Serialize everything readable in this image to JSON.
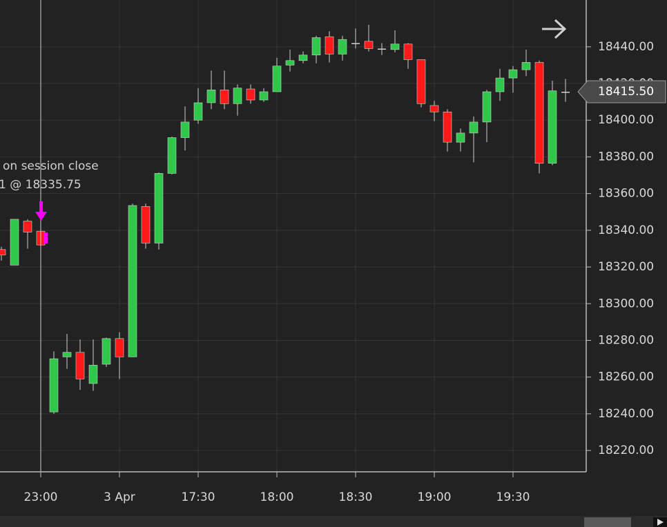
{
  "chart_data": {
    "type": "candlestick",
    "categories": [
      null,
      null,
      null,
      "23:00",
      null,
      null,
      null,
      null,
      null,
      "3 Apr",
      null,
      null,
      null,
      null,
      null,
      "17:30",
      null,
      null,
      null,
      null,
      null,
      "18:00",
      null,
      null,
      null,
      null,
      null,
      "18:30",
      null,
      null,
      null,
      null,
      null,
      "19:00",
      null,
      null,
      null,
      null,
      null,
      "19:30",
      null,
      null,
      null,
      null
    ],
    "open": [
      18329.5,
      18321,
      18345,
      18339.5,
      18241,
      18271,
      18273.5,
      18256.5,
      18267,
      18281,
      18271,
      18353,
      18333,
      18371,
      18390.5,
      18400,
      18409.5,
      18416.5,
      18409,
      18417,
      18411,
      18415.5,
      18430,
      18432.5,
      18435.5,
      18445.5,
      18436,
      18442,
      18443,
      18439,
      18438.5,
      18441.5,
      18433,
      18408,
      18404.5,
      18388,
      18393,
      18399,
      18415.5,
      18423,
      18427.5,
      18431.5,
      18376.5,
      18415.5
    ],
    "high": [
      18331,
      18346,
      18346,
      18341.5,
      18274,
      18283.5,
      18280.5,
      18280.5,
      18281.5,
      18284.5,
      18354.5,
      18354.5,
      18371.5,
      18391,
      18407.5,
      18417.5,
      18427,
      18427,
      18419.5,
      18419.5,
      18417.5,
      18434,
      18438.5,
      18437.5,
      18446,
      18448.5,
      18446,
      18450,
      18452,
      18442,
      18449,
      18442,
      18433,
      18410.5,
      18406,
      18395.5,
      18402,
      18416.5,
      18428,
      18429.5,
      18438.5,
      18432.5,
      18421.5,
      18422.5
    ],
    "low": [
      18323.5,
      18321,
      18330,
      18331,
      18240,
      18264.5,
      18253,
      18252.5,
      18265.5,
      18259,
      18271,
      18330,
      18329.5,
      18370.5,
      18383.5,
      18398,
      18406,
      18406,
      18402.5,
      18409,
      18410,
      18415.5,
      18426.5,
      18431,
      18431,
      18431.5,
      18432.5,
      18439,
      18437.5,
      18435.5,
      18437,
      18428,
      18407,
      18399.5,
      18383,
      18383,
      18377,
      18388,
      18410.5,
      18415,
      18424,
      18371,
      18375.5,
      18410
    ],
    "close": [
      18326.5,
      18346,
      18339,
      18332,
      18270,
      18273.5,
      18259,
      18266.5,
      18281,
      18271,
      18353.5,
      18333,
      18371,
      18390.5,
      18399,
      18409.5,
      18416.5,
      18409,
      18417.5,
      18411,
      18415.5,
      18429.5,
      18432.5,
      18435.5,
      18445,
      18436,
      18444,
      18442,
      18439,
      18439,
      18441.5,
      18433,
      18409,
      18404.5,
      18388,
      18393,
      18399,
      18415.5,
      18423,
      18427.5,
      18431.5,
      18376.5,
      18416,
      18415.5
    ],
    "up_color": "#2fc84a",
    "down_color": "#ff1a1a",
    "ylim": [
      18208.75,
      18465.5
    ],
    "yticks": [
      {
        "value": 18220,
        "label": "18220.00"
      },
      {
        "value": 18240,
        "label": "18240.00"
      },
      {
        "value": 18260,
        "label": "18260.00"
      },
      {
        "value": 18280,
        "label": "18280.00"
      },
      {
        "value": 18300,
        "label": "18300.00"
      },
      {
        "value": 18320,
        "label": "18320.00"
      },
      {
        "value": 18340,
        "label": "18340.00"
      },
      {
        "value": 18360,
        "label": "18360.00"
      },
      {
        "value": 18380,
        "label": "18380.00"
      },
      {
        "value": 18400,
        "label": "18400.00"
      },
      {
        "value": 18420,
        "label": "18420.00"
      },
      {
        "value": 18440,
        "label": "18440.00"
      }
    ],
    "grid": true,
    "last_price": {
      "value": 18415.5,
      "label": "18415.50"
    },
    "annotations": [
      "on session close",
      "1 @ 18335.75"
    ]
  }
}
